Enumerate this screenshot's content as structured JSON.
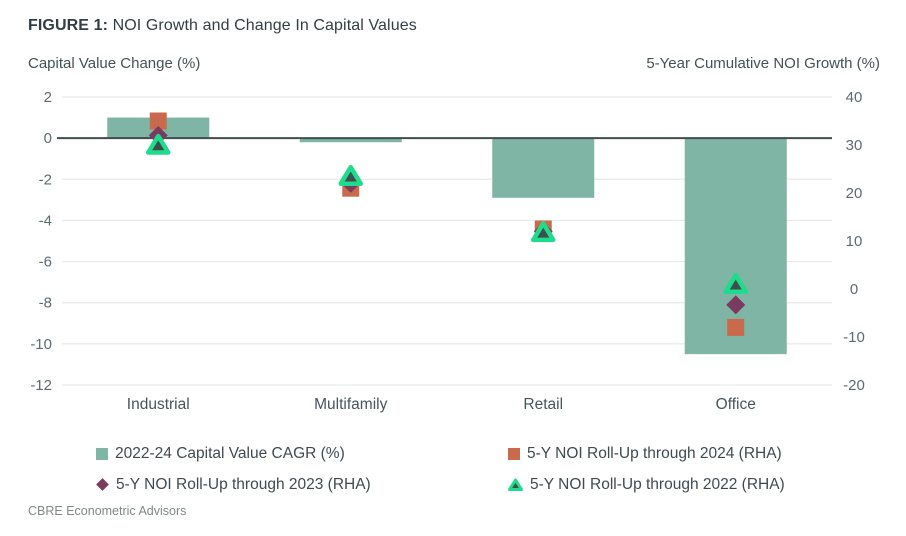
{
  "figure": {
    "label": "FIGURE 1:",
    "title": " NOI Growth and Change In Capital Values"
  },
  "axis_titles": {
    "left": "Capital Value Change (%)",
    "right": "5-Year Cumulative NOI Growth (%)"
  },
  "chart_data": {
    "type": "bar",
    "subtype": "combo bar + scatter markers, dual axis",
    "categories": [
      "Industrial",
      "Multifamily",
      "Retail",
      "Office"
    ],
    "bar_series": {
      "name": "2022-24 Capital Value CAGR (%)",
      "axis": "left",
      "values": [
        1.0,
        -0.2,
        -2.9,
        -10.5
      ]
    },
    "marker_series": [
      {
        "name": "5-Y NOI Roll-Up through 2024 (RHA)",
        "key": "2024",
        "axis": "right",
        "marker": "square",
        "values": [
          35,
          21,
          12.5,
          -8
        ]
      },
      {
        "name": "5-Y NOI Roll-Up through 2023 (RHA)",
        "key": "2023",
        "axis": "right",
        "marker": "diamond",
        "values": [
          32,
          22,
          12,
          -3.3
        ]
      },
      {
        "name": "5-Y NOI Roll-Up through 2022 (RHA)",
        "key": "2022",
        "axis": "right",
        "marker": "triangle",
        "values": [
          30,
          23.5,
          11.8,
          1
        ]
      }
    ],
    "left_axis": {
      "title": "Capital Value Change (%)",
      "ticks": [
        2,
        0,
        -2,
        -4,
        -6,
        -8,
        -10,
        -12
      ],
      "min": -12,
      "max": 2
    },
    "right_axis": {
      "title": "5-Year Cumulative NOI Growth (%)",
      "ticks": [
        40,
        30,
        20,
        10,
        0,
        -10,
        -20
      ],
      "min": -20,
      "max": 40
    },
    "grid": "horizontal gridlines at left-axis ticks only; dark line at left-axis zero",
    "legend_position": "bottom"
  },
  "legend": {
    "items": [
      {
        "label": "2022-24 Capital Value CAGR (%)",
        "marker": "square",
        "color": "#7EB5A4"
      },
      {
        "label": "5-Y NOI Roll-Up through 2024 (RHA)",
        "marker": "square",
        "color": "#C96A4C"
      },
      {
        "label": "5-Y NOI Roll-Up through 2023 (RHA)",
        "marker": "diamond",
        "color": "#7A3C5E"
      },
      {
        "label": "5-Y NOI Roll-Up through 2022 (RHA)",
        "marker": "triangle",
        "color": "#1EDC8C"
      }
    ]
  },
  "footer": {
    "source": "CBRE Econometric Advisors"
  },
  "colors": {
    "bar": "#7EB5A4",
    "marker_2024": "#C96A4C",
    "marker_2023": "#7A3C5E",
    "marker_2022_stroke": "#1EDC8C",
    "marker_2022_fill": "#3C4E4E",
    "zero_line": "#404e4e",
    "gridline": "#e7e9e9",
    "tick_text": "#5c6b70",
    "category_text": "#47545a"
  }
}
